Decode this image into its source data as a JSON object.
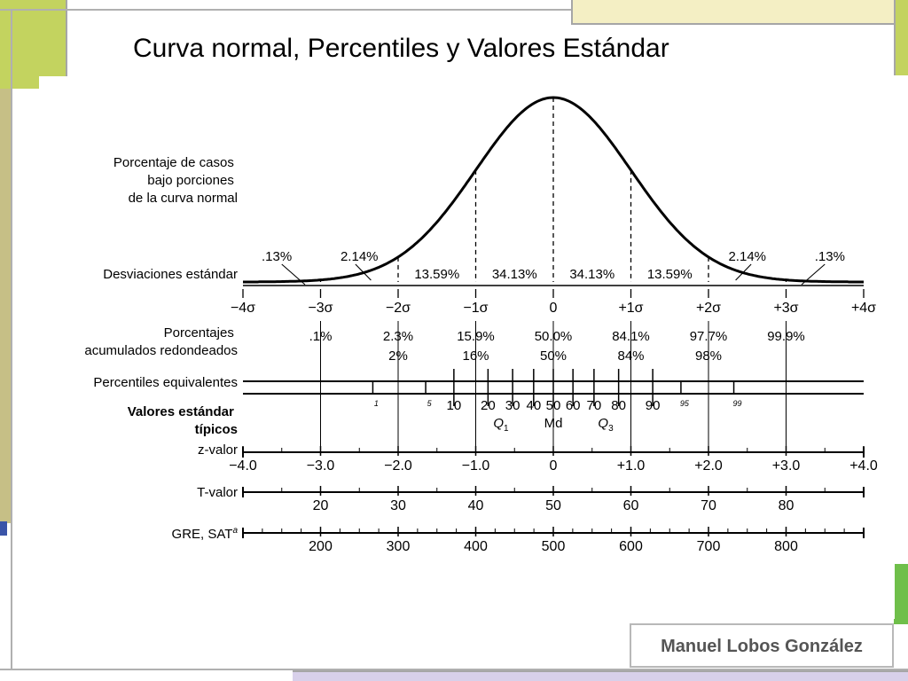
{
  "slide": {
    "title": "Curva normal, Percentiles y Valores Estándar",
    "author": "Manuel Lobos González"
  },
  "colors": {
    "deco_green": "#c3d35f",
    "deco_tan": "#c6bf86",
    "deco_lavender": "#d8d0ea",
    "deco_border": "#a6a6a6",
    "deco_blue": "#3a54a8",
    "ink": "#000000"
  },
  "diagram": {
    "row_labels": {
      "area_label": [
        "Porcentaje de casos",
        "bajo porciones",
        "de la curva normal"
      ],
      "sd_label": "Desviaciones estándar",
      "cum_label": [
        "Porcentajes",
        "acumulados redondeados"
      ],
      "pct_label": "Percentiles equivalentes",
      "std_label": [
        "Valores estándar",
        "típicos"
      ],
      "z_label": "z-valor",
      "t_label": "T-valor",
      "gre_label": "GRE, SAT",
      "gre_sup": "a"
    },
    "area_percents": [
      ".13%",
      "2.14%",
      "13.59%",
      "34.13%",
      "34.13%",
      "13.59%",
      "2.14%",
      ".13%"
    ],
    "sd_ticks": [
      "−4σ",
      "−3σ",
      "−2σ",
      "−1σ",
      "0",
      "+1σ",
      "+2σ",
      "+3σ",
      "+4σ"
    ],
    "sd_values": [
      -4,
      -3,
      -2,
      -1,
      0,
      1,
      2,
      3,
      4
    ],
    "cum_top": [
      ".1%",
      "2.3%",
      "15.9%",
      "50.0%",
      "84.1%",
      "97.7%",
      "99.9%"
    ],
    "cum_bottom": [
      "2%",
      "16%",
      "50%",
      "84%",
      "98%"
    ],
    "percentile_ticks": [
      1,
      5,
      10,
      20,
      30,
      40,
      50,
      60,
      70,
      80,
      90,
      95,
      99
    ],
    "percentile_small": [
      "1",
      "5",
      "95",
      "99"
    ],
    "percentile_large": [
      "10",
      "20",
      "30",
      "40",
      "50",
      "60",
      "70",
      "80",
      "90"
    ],
    "quartiles": [
      {
        "letter": "Q",
        "sub": "1"
      },
      {
        "letter": "Md",
        "sub": ""
      },
      {
        "letter": "Q",
        "sub": "3"
      }
    ],
    "z_values": [
      "−4.0",
      "−3.0",
      "−2.0",
      "−1.0",
      "0",
      "+1.0",
      "+2.0",
      "+3.0",
      "+4.0"
    ],
    "t_values": [
      "20",
      "30",
      "40",
      "50",
      "60",
      "70",
      "80"
    ],
    "gre_values": [
      "200",
      "300",
      "400",
      "500",
      "600",
      "700",
      "800"
    ]
  }
}
